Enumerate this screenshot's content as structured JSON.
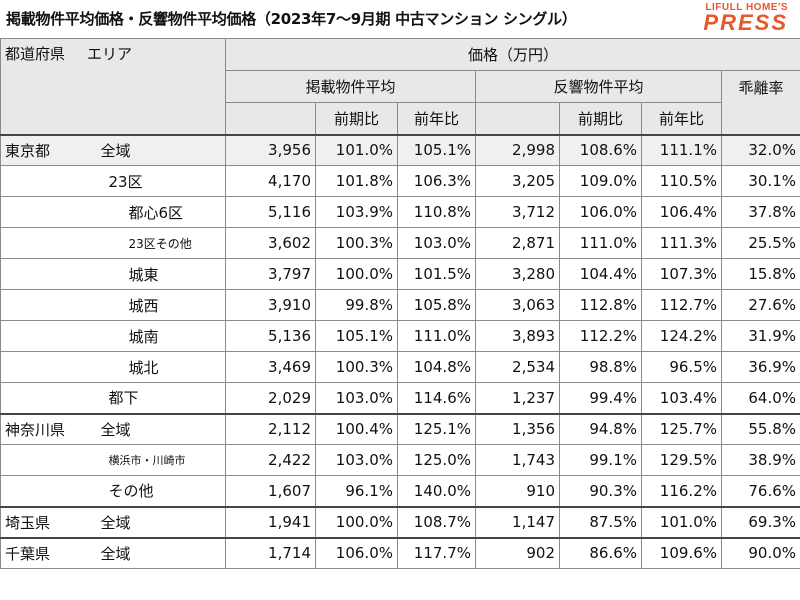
{
  "title": "掲載物件平均価格・反響物件平均価格（2023年7〜9月期 中古マンション シングル）",
  "logo": {
    "sub": "LIFULL HOME'S",
    "main": "PRESS"
  },
  "header": {
    "pref_label": "都道府県",
    "area_label": "エリア",
    "price_label": "価格（万円）",
    "listing_avg": "掲載物件平均",
    "response_avg": "反響物件平均",
    "gap": "乖離率",
    "qoq": "前期比",
    "yoy": "前年比"
  },
  "rows": [
    {
      "pref": "東京都",
      "area": "全域",
      "level": 0,
      "listing": "3,956",
      "l_qoq": "101.0%",
      "l_yoy": "105.1%",
      "response": "2,998",
      "r_qoq": "108.6%",
      "r_yoy": "111.1%",
      "gap": "32.0%"
    },
    {
      "pref": "",
      "area": "23区",
      "level": 1,
      "listing": "4,170",
      "l_qoq": "101.8%",
      "l_yoy": "106.3%",
      "response": "3,205",
      "r_qoq": "109.0%",
      "r_yoy": "110.5%",
      "gap": "30.1%"
    },
    {
      "pref": "",
      "area": "都心6区",
      "level": 2,
      "listing": "5,116",
      "l_qoq": "103.9%",
      "l_yoy": "110.8%",
      "response": "3,712",
      "r_qoq": "106.0%",
      "r_yoy": "106.4%",
      "gap": "37.8%"
    },
    {
      "pref": "",
      "area": "23区その他",
      "level": 2,
      "listing": "3,602",
      "l_qoq": "100.3%",
      "l_yoy": "103.0%",
      "response": "2,871",
      "r_qoq": "111.0%",
      "r_yoy": "111.3%",
      "gap": "25.5%"
    },
    {
      "pref": "",
      "area": "城東",
      "level": 2,
      "listing": "3,797",
      "l_qoq": "100.0%",
      "l_yoy": "101.5%",
      "response": "3,280",
      "r_qoq": "104.4%",
      "r_yoy": "107.3%",
      "gap": "15.8%"
    },
    {
      "pref": "",
      "area": "城西",
      "level": 2,
      "listing": "3,910",
      "l_qoq": "99.8%",
      "l_yoy": "105.8%",
      "response": "3,063",
      "r_qoq": "112.8%",
      "r_yoy": "112.7%",
      "gap": "27.6%"
    },
    {
      "pref": "",
      "area": "城南",
      "level": 2,
      "listing": "5,136",
      "l_qoq": "105.1%",
      "l_yoy": "111.0%",
      "response": "3,893",
      "r_qoq": "112.2%",
      "r_yoy": "124.2%",
      "gap": "31.9%"
    },
    {
      "pref": "",
      "area": "城北",
      "level": 2,
      "listing": "3,469",
      "l_qoq": "100.3%",
      "l_yoy": "104.8%",
      "response": "2,534",
      "r_qoq": "98.8%",
      "r_yoy": "96.5%",
      "gap": "36.9%"
    },
    {
      "pref": "",
      "area": "都下",
      "level": 1,
      "listing": "2,029",
      "l_qoq": "103.0%",
      "l_yoy": "114.6%",
      "response": "1,237",
      "r_qoq": "99.4%",
      "r_yoy": "103.4%",
      "gap": "64.0%"
    },
    {
      "pref": "神奈川県",
      "area": "全域",
      "level": 0,
      "listing": "2,112",
      "l_qoq": "100.4%",
      "l_yoy": "125.1%",
      "response": "1,356",
      "r_qoq": "94.8%",
      "r_yoy": "125.7%",
      "gap": "55.8%"
    },
    {
      "pref": "",
      "area": "横浜市・川崎市",
      "level": 1,
      "listing": "2,422",
      "l_qoq": "103.0%",
      "l_yoy": "125.0%",
      "response": "1,743",
      "r_qoq": "99.1%",
      "r_yoy": "129.5%",
      "gap": "38.9%"
    },
    {
      "pref": "",
      "area": "その他",
      "level": 1,
      "listing": "1,607",
      "l_qoq": "96.1%",
      "l_yoy": "140.0%",
      "response": "910",
      "r_qoq": "90.3%",
      "r_yoy": "116.2%",
      "gap": "76.6%"
    },
    {
      "pref": "埼玉県",
      "area": "全域",
      "level": 0,
      "listing": "1,941",
      "l_qoq": "100.0%",
      "l_yoy": "108.7%",
      "response": "1,147",
      "r_qoq": "87.5%",
      "r_yoy": "101.0%",
      "gap": "69.3%"
    },
    {
      "pref": "千葉県",
      "area": "全域",
      "level": 0,
      "listing": "1,714",
      "l_qoq": "106.0%",
      "l_yoy": "117.7%",
      "response": "902",
      "r_qoq": "86.6%",
      "r_yoy": "109.6%",
      "gap": "90.0%"
    }
  ]
}
